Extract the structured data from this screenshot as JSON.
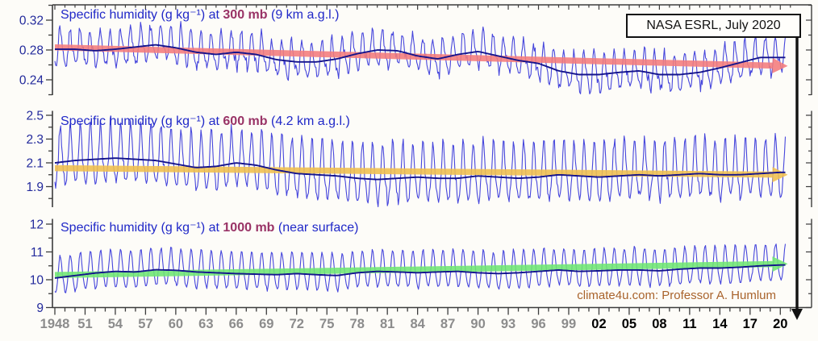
{
  "page": {
    "background": "#fdfcf8"
  },
  "header": {
    "source_label": "NASA ESRL, July 2020"
  },
  "footer": {
    "attribution": "climate4u.com: Professor A. Humlum"
  },
  "colors": {
    "title_blue": "#2028c8",
    "level_plum": "#993366",
    "monthly_line": "#4646dc",
    "smooth_line": "#14148c",
    "trend_300mb": "#f47c7c",
    "trend_600mb": "#f0bf4e",
    "trend_1000mb": "#6fe773",
    "axis": "#3c3c3c",
    "ylabel_navy": "#232a9c",
    "xlabel_gray": "#8c8c8c",
    "xlabel_black": "#000000",
    "marker_arrow": "#111111"
  },
  "x_axis": {
    "start_year": 1948,
    "end_year": 2020.58,
    "minor_tick_interval_years": 1,
    "major_tick_interval_years": 3,
    "tick_labels": [
      {
        "label": "1948",
        "year": 1948,
        "shade": "gray"
      },
      {
        "label": "51",
        "year": 1951,
        "shade": "gray"
      },
      {
        "label": "54",
        "year": 1954,
        "shade": "gray"
      },
      {
        "label": "57",
        "year": 1957,
        "shade": "gray"
      },
      {
        "label": "60",
        "year": 1960,
        "shade": "gray"
      },
      {
        "label": "63",
        "year": 1963,
        "shade": "gray"
      },
      {
        "label": "66",
        "year": 1966,
        "shade": "gray"
      },
      {
        "label": "69",
        "year": 1969,
        "shade": "gray"
      },
      {
        "label": "72",
        "year": 1972,
        "shade": "gray"
      },
      {
        "label": "75",
        "year": 1975,
        "shade": "gray"
      },
      {
        "label": "78",
        "year": 1978,
        "shade": "gray"
      },
      {
        "label": "81",
        "year": 1981,
        "shade": "gray"
      },
      {
        "label": "84",
        "year": 1984,
        "shade": "gray"
      },
      {
        "label": "87",
        "year": 1987,
        "shade": "gray"
      },
      {
        "label": "90",
        "year": 1990,
        "shade": "gray"
      },
      {
        "label": "93",
        "year": 1993,
        "shade": "gray"
      },
      {
        "label": "96",
        "year": 1996,
        "shade": "gray"
      },
      {
        "label": "99",
        "year": 1999,
        "shade": "gray"
      },
      {
        "label": "02",
        "year": 2002,
        "shade": "black"
      },
      {
        "label": "05",
        "year": 2005,
        "shade": "black"
      },
      {
        "label": "08",
        "year": 2008,
        "shade": "black"
      },
      {
        "label": "11",
        "year": 2011,
        "shade": "black"
      },
      {
        "label": "14",
        "year": 2014,
        "shade": "black"
      },
      {
        "label": "17",
        "year": 2017,
        "shade": "black"
      },
      {
        "label": "20",
        "year": 2020,
        "shade": "black"
      }
    ]
  },
  "chart_data": [
    {
      "type": "line",
      "title_prefix": "Specific humidity (g kg⁻¹) at",
      "level_label": "300 mb",
      "title_suffix": "(9 km a.g.l.)",
      "unit": "g kg⁻¹",
      "grid": false,
      "legend_position": "none",
      "ylim": [
        0.22,
        0.336
      ],
      "yticks": [
        {
          "v": 0.34
        },
        {
          "v": 0.32,
          "label": "0.32"
        },
        {
          "v": 0.3
        },
        {
          "v": 0.28,
          "label": "0.28"
        },
        {
          "v": 0.26
        },
        {
          "v": 0.24,
          "label": "0.24"
        },
        {
          "v": 0.22
        }
      ],
      "series": [
        {
          "name": "monthly values",
          "color": "#4646dc",
          "synthesis": {
            "derived_from": "smoothed series + annual cycle",
            "amp_up": 0.024,
            "amp_down": 0.021,
            "sharpness": 1.1,
            "noise": 0.009,
            "harmonic2": 0.007,
            "seed": 11
          }
        },
        {
          "name": "running mean (smoothed)",
          "color": "#14148c",
          "x": [
            1948,
            1950,
            1952,
            1954,
            1956,
            1958,
            1960,
            1962,
            1964,
            1966,
            1968,
            1970,
            1972,
            1974,
            1976,
            1978,
            1980,
            1982,
            1984,
            1986,
            1988,
            1990,
            1992,
            1994,
            1996,
            1998,
            2000,
            2002,
            2004,
            2006,
            2008,
            2010,
            2012,
            2014,
            2016,
            2018,
            2020
          ],
          "values": [
            0.281,
            0.281,
            0.279,
            0.281,
            0.284,
            0.287,
            0.283,
            0.277,
            0.274,
            0.277,
            0.274,
            0.267,
            0.264,
            0.264,
            0.268,
            0.275,
            0.28,
            0.279,
            0.272,
            0.268,
            0.274,
            0.278,
            0.272,
            0.266,
            0.262,
            0.252,
            0.247,
            0.247,
            0.25,
            0.252,
            0.247,
            0.247,
            0.25,
            0.256,
            0.263,
            0.27,
            0.27
          ]
        },
        {
          "name": "linear trend (declining)",
          "color": "#f47c7c",
          "style": "thick-band-with-arrow",
          "x": [
            1948,
            2020.58
          ],
          "values": [
            0.2835,
            0.2585
          ]
        }
      ]
    },
    {
      "type": "line",
      "title_prefix": "Specific humidity (g kg⁻¹) at",
      "level_label": "600 mb",
      "title_suffix": "(4.2 km a.g.l.)",
      "unit": "g kg⁻¹",
      "grid": false,
      "legend_position": "none",
      "ylim": [
        1.73,
        2.54
      ],
      "yticks": [
        {
          "v": 2.5,
          "label": "2.5"
        },
        {
          "v": 2.4
        },
        {
          "v": 2.3,
          "label": "2.3"
        },
        {
          "v": 2.2
        },
        {
          "v": 2.1,
          "label": "2.1"
        },
        {
          "v": 2.0
        },
        {
          "v": 1.9,
          "label": "1.9"
        },
        {
          "v": 1.8
        }
      ],
      "series": [
        {
          "name": "monthly values",
          "color": "#4646dc",
          "synthesis": {
            "derived_from": "smoothed series + annual cycle",
            "amp_up": 0.3,
            "amp_down": 0.2,
            "sharpness": 1.7,
            "noise": 0.05,
            "harmonic2": 0.02,
            "seed": 22
          }
        },
        {
          "name": "running mean (smoothed)",
          "color": "#14148c",
          "x": [
            1948,
            1950,
            1952,
            1954,
            1956,
            1958,
            1960,
            1962,
            1964,
            1966,
            1968,
            1970,
            1972,
            1974,
            1976,
            1978,
            1980,
            1982,
            1984,
            1986,
            1988,
            1990,
            1992,
            1994,
            1996,
            1998,
            2000,
            2002,
            2004,
            2006,
            2008,
            2010,
            2012,
            2014,
            2016,
            2018,
            2020
          ],
          "values": [
            2.1,
            2.12,
            2.13,
            2.14,
            2.13,
            2.12,
            2.09,
            2.06,
            2.07,
            2.1,
            2.08,
            2.04,
            2.01,
            2.0,
            1.99,
            1.97,
            1.96,
            1.97,
            1.98,
            1.97,
            1.97,
            1.99,
            1.98,
            1.97,
            1.98,
            2.0,
            1.99,
            1.98,
            1.99,
            2.0,
            1.99,
            2.0,
            2.01,
            2.0,
            2.0,
            2.01,
            2.02
          ]
        },
        {
          "name": "linear trend (near flat)",
          "color": "#f0bf4e",
          "style": "thick-band-with-arrow",
          "x": [
            1948,
            2020.58
          ],
          "values": [
            2.055,
            2.0
          ]
        }
      ]
    },
    {
      "type": "line",
      "title_prefix": "Specific humidity (g kg⁻¹) at",
      "level_label": "1000 mb",
      "title_suffix": "(near surface)",
      "unit": "g kg⁻¹",
      "grid": false,
      "legend_position": "none",
      "ylim": [
        9.0,
        12.2
      ],
      "yticks": [
        {
          "v": 12,
          "label": "12"
        },
        {
          "v": 11.5
        },
        {
          "v": 11,
          "label": "11"
        },
        {
          "v": 10.5
        },
        {
          "v": 10,
          "label": "10"
        },
        {
          "v": 9.5
        },
        {
          "v": 9,
          "label": "9"
        }
      ],
      "series": [
        {
          "name": "monthly values",
          "color": "#4646dc",
          "synthesis": {
            "derived_from": "smoothed series + annual cycle",
            "amp_up": 0.78,
            "amp_down": 0.56,
            "sharpness": 1.25,
            "noise": 0.09,
            "harmonic2": 0.04,
            "seed": 33
          }
        },
        {
          "name": "running mean (smoothed)",
          "color": "#14148c",
          "x": [
            1948,
            1950,
            1952,
            1954,
            1956,
            1958,
            1960,
            1962,
            1964,
            1966,
            1968,
            1970,
            1972,
            1974,
            1976,
            1978,
            1980,
            1982,
            1984,
            1986,
            1988,
            1990,
            1992,
            1994,
            1996,
            1998,
            2000,
            2002,
            2004,
            2006,
            2008,
            2010,
            2012,
            2014,
            2016,
            2018,
            2020
          ],
          "values": [
            10.06,
            10.15,
            10.24,
            10.3,
            10.28,
            10.36,
            10.34,
            10.28,
            10.25,
            10.22,
            10.2,
            10.18,
            10.22,
            10.18,
            10.15,
            10.25,
            10.3,
            10.28,
            10.25,
            10.28,
            10.3,
            10.25,
            10.22,
            10.25,
            10.3,
            10.35,
            10.3,
            10.32,
            10.35,
            10.35,
            10.32,
            10.38,
            10.42,
            10.42,
            10.45,
            10.5,
            10.53
          ]
        },
        {
          "name": "linear trend (rising)",
          "color": "#6fe773",
          "style": "thick-band-with-arrow",
          "x": [
            1948,
            2020.58
          ],
          "values": [
            10.17,
            10.57
          ]
        }
      ]
    }
  ]
}
